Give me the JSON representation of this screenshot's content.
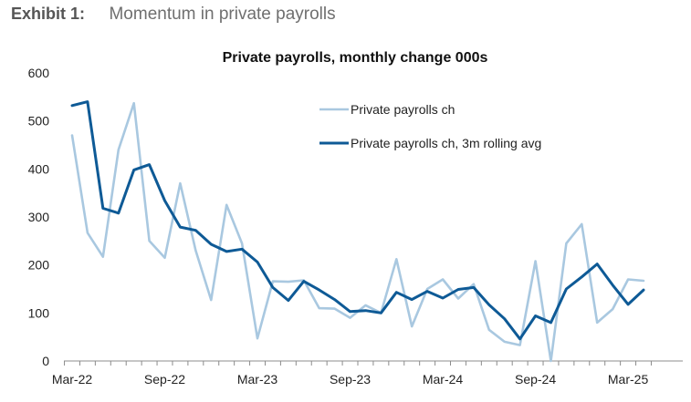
{
  "header": {
    "label": "Exhibit 1:",
    "title": "Momentum in private payrolls"
  },
  "colors": {
    "series_light": "#a9c8e0",
    "series_dark": "#0e5a96",
    "axis": "#8c8c8c",
    "text": "#222222"
  },
  "chart_data": {
    "type": "line",
    "title": "Private payrolls, monthly change 000s",
    "xlabel": "",
    "ylabel": "",
    "ylim": [
      0,
      600
    ],
    "y_ticks": [
      0,
      100,
      200,
      300,
      400,
      500,
      600
    ],
    "x_tick_labels": [
      "Mar-22",
      "Sep-22",
      "Mar-23",
      "Sep-23",
      "Mar-24",
      "Sep-24",
      "Mar-25"
    ],
    "legend_position": "top-right",
    "grid": false,
    "x": [
      "Mar-22",
      "Apr-22",
      "May-22",
      "Jun-22",
      "Jul-22",
      "Aug-22",
      "Sep-22",
      "Oct-22",
      "Nov-22",
      "Dec-22",
      "Jan-23",
      "Feb-23",
      "Mar-23",
      "Apr-23",
      "May-23",
      "Jun-23",
      "Jul-23",
      "Aug-23",
      "Sep-23",
      "Oct-23",
      "Nov-23",
      "Dec-23",
      "Jan-24",
      "Feb-24",
      "Mar-24",
      "Apr-24",
      "May-24",
      "Jun-24",
      "Jul-24",
      "Aug-24",
      "Sep-24",
      "Oct-24",
      "Nov-24",
      "Dec-24",
      "Jan-25",
      "Feb-25",
      "Mar-25",
      "Apr-25"
    ],
    "series": [
      {
        "name": "Private payrolls ch",
        "values": [
          470,
          267,
          217,
          440,
          537,
          250,
          215,
          370,
          230,
          127,
          325,
          245,
          47,
          166,
          165,
          168,
          110,
          109,
          90,
          116,
          100,
          212,
          72,
          150,
          170,
          130,
          160,
          65,
          40,
          33,
          208,
          0,
          245,
          285,
          80,
          108,
          170,
          167
        ]
      },
      {
        "name": "Private payrolls ch, 3m rolling avg",
        "values": [
          532,
          540,
          318,
          308,
          398,
          409,
          334,
          279,
          272,
          243,
          228,
          233,
          206,
          153,
          126,
          166,
          148,
          128,
          103,
          105,
          100,
          143,
          128,
          145,
          131,
          149,
          153,
          117,
          88,
          46,
          94,
          80,
          150,
          175,
          202,
          158,
          118,
          148
        ]
      }
    ]
  }
}
